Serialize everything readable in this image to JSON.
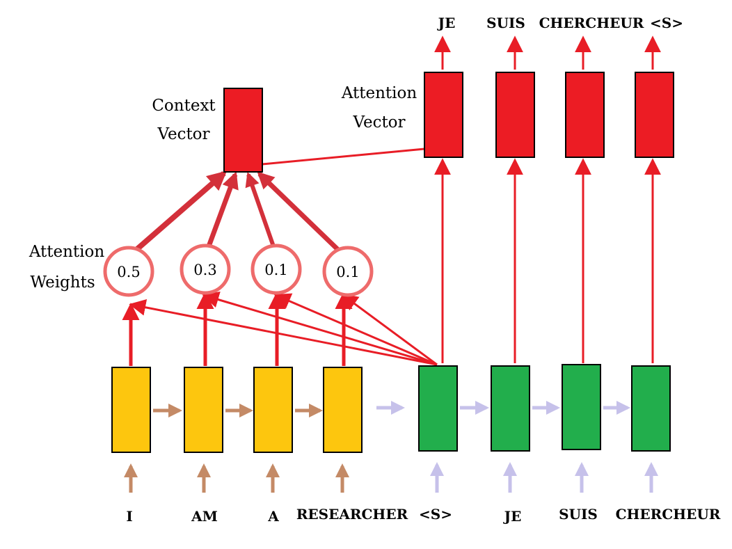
{
  "labels": {
    "context_vector": [
      "Context",
      "Vector"
    ],
    "attention_vector": [
      "Attention",
      "Vector"
    ],
    "attention_weights": [
      "Attention",
      "Weights"
    ]
  },
  "weights": [
    "0.5",
    "0.3",
    "0.1",
    "0.1"
  ],
  "encoder_inputs": [
    "I",
    "AM",
    "A",
    "RESEARCHER"
  ],
  "decoder_inputs": [
    "<S>",
    "JE",
    "SUIS",
    "CHERCHEUR"
  ],
  "decoder_outputs": [
    "JE",
    "SUIS",
    "CHERCHEUR",
    "<S>"
  ],
  "colors": {
    "encoder": "#fdc60e",
    "decoder": "#22ae4c",
    "output": "#ec1c24",
    "attention_line": "#e81d26",
    "weight_circle": "#ee6b6b",
    "brown_arrow": "#c48a66",
    "lavender_arrow": "#c6c1ea"
  }
}
